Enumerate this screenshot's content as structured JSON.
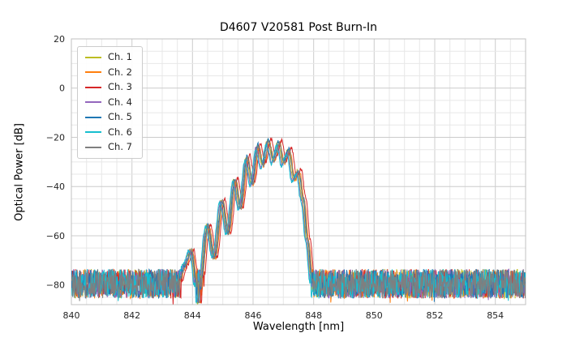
{
  "chart_data": {
    "type": "line",
    "title": "D4607 V20581 Post Burn-In",
    "xlabel": "Wavelength [nm]",
    "ylabel": "Optical Power [dB]",
    "xlim": [
      840,
      855
    ],
    "ylim": [
      -88,
      20
    ],
    "x_ticks": [
      840,
      842,
      844,
      846,
      848,
      850,
      852,
      854
    ],
    "y_ticks": [
      20,
      0,
      -20,
      -40,
      -60,
      -80
    ],
    "x_minor_step": 0.5,
    "y_minor_step": 5,
    "grid": true,
    "legend_position": "upper-left",
    "sample_step": 0.015,
    "noise_seed": 42,
    "noise_floor": {
      "mean": -79.5,
      "amplitude": 6,
      "signal_region": [
        843.55,
        847.95
      ]
    },
    "signal_profile": [
      [
        843.55,
        -79
      ],
      [
        843.75,
        -72
      ],
      [
        843.95,
        -66
      ],
      [
        844.2,
        -87
      ],
      [
        844.5,
        -56
      ],
      [
        844.72,
        -69
      ],
      [
        844.97,
        -46
      ],
      [
        845.17,
        -59
      ],
      [
        845.4,
        -37.5
      ],
      [
        845.58,
        -49
      ],
      [
        845.8,
        -28.5
      ],
      [
        845.97,
        -39
      ],
      [
        846.15,
        -23.5
      ],
      [
        846.32,
        -31.5
      ],
      [
        846.5,
        -21.8
      ],
      [
        846.67,
        -29.5
      ],
      [
        846.85,
        -22.3
      ],
      [
        847.0,
        -30.5
      ],
      [
        847.18,
        -25.5
      ],
      [
        847.35,
        -37
      ],
      [
        847.5,
        -34
      ],
      [
        847.65,
        -45
      ],
      [
        847.8,
        -62
      ],
      [
        847.95,
        -79
      ]
    ],
    "series": [
      {
        "name": "Ch. 1",
        "color": "#bcbd22",
        "x_offset": -0.03,
        "y_offset": 0.4
      },
      {
        "name": "Ch. 2",
        "color": "#ff7f0e",
        "x_offset": 0.04,
        "y_offset": -0.3
      },
      {
        "name": "Ch. 3",
        "color": "#d62728",
        "x_offset": 0.09,
        "y_offset": 1.2
      },
      {
        "name": "Ch. 4",
        "color": "#9467bd",
        "x_offset": -0.05,
        "y_offset": -0.6
      },
      {
        "name": "Ch. 5",
        "color": "#1f77b4",
        "x_offset": 0.0,
        "y_offset": 0.8
      },
      {
        "name": "Ch. 6",
        "color": "#17becf",
        "x_offset": -0.07,
        "y_offset": -1.2
      },
      {
        "name": "Ch. 7",
        "color": "#7f7f7f",
        "x_offset": 0.02,
        "y_offset": 0.0
      }
    ]
  }
}
